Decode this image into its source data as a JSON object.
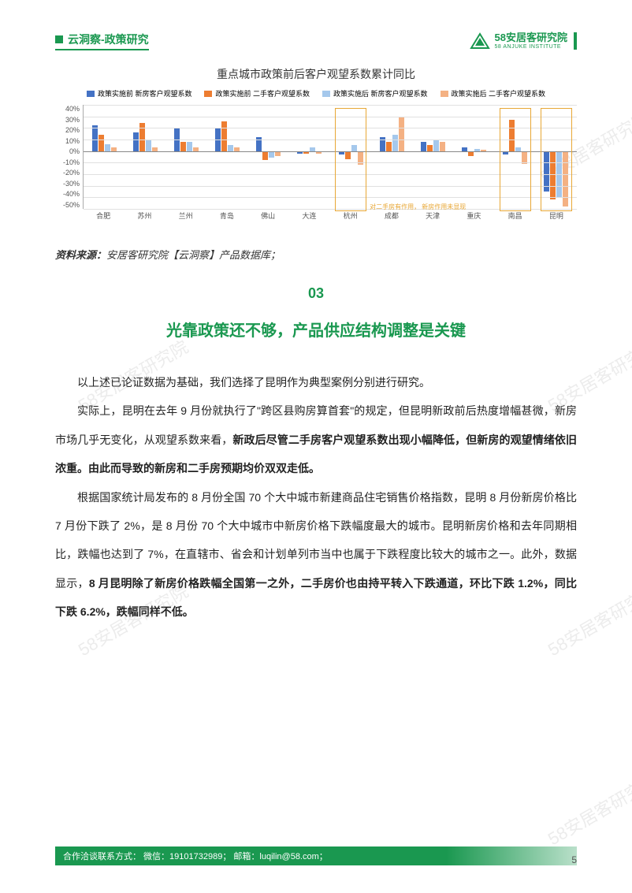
{
  "header": {
    "left": "云洞察-政策研究",
    "brand_main": "58安居客研究院",
    "brand_sub": "58 ANJUKE INSTITUTE"
  },
  "chart": {
    "title": "重点城市政策前后客户观望系数累计同比",
    "type": "bar",
    "legend": [
      {
        "label": "政策实施前 新房客户观望系数",
        "color": "#4472c4"
      },
      {
        "label": "政策实施前 二手客户观望系数",
        "color": "#ed7d31"
      },
      {
        "label": "政策实施后 新房客户观望系数",
        "color": "#a5c8ec"
      },
      {
        "label": "政策实施后 二手客户观望系数",
        "color": "#f4b183"
      }
    ],
    "categories": [
      "合肥",
      "苏州",
      "兰州",
      "青岛",
      "佛山",
      "大连",
      "杭州",
      "成都",
      "天津",
      "重庆",
      "南昌",
      "昆明"
    ],
    "series": [
      [
        22,
        16,
        20,
        20,
        12,
        -2,
        -3,
        12,
        8,
        3,
        -3,
        -35
      ],
      [
        14,
        24,
        8,
        26,
        -8,
        -2,
        -7,
        8,
        5,
        -4,
        27,
        -42
      ],
      [
        6,
        10,
        8,
        5,
        -6,
        3,
        5,
        14,
        10,
        2,
        3,
        -40
      ],
      [
        3,
        3,
        3,
        3,
        -4,
        -2,
        -12,
        30,
        8,
        1,
        -11,
        -48
      ]
    ],
    "ylim": [
      -50,
      40
    ],
    "ytick_step": 10,
    "y_format": "%",
    "bar_colors": [
      "#4472c4",
      "#ed7d31",
      "#a5c8ec",
      "#f4b183"
    ],
    "annotation_text": "对二手房有作用，\n新房作用未显现",
    "grid_color": "#e0e0e0",
    "background_color": "#ffffff"
  },
  "source": {
    "label": "资料来源：",
    "text": "安居客研究院【云洞察】产品数据库；"
  },
  "section": {
    "number": "03",
    "title": "光靠政策还不够，产品供应结构调整是关键"
  },
  "paragraphs": [
    {
      "plain": "以上述已论证数据为基础，我们选择了昆明作为典型案例分别进行研究。"
    },
    {
      "pre": "实际上，昆明在去年 9 月份就执行了\"跨区县购房算首套\"的规定，但昆明新政前后热度增幅甚微，新房市场几乎无变化，从观望系数来看，",
      "bold": "新政后尽管二手房客户观望系数出现小幅降低，但新房的观望情绪依旧浓重。由此而导致的新房和二手房预期均价双双走低。"
    },
    {
      "pre": "根据国家统计局发布的 8 月份全国 70 个大中城市新建商品住宅销售价格指数，昆明 8 月份新房价格比 7 月份下跌了 2%，是 8 月份 70 个大中城市中新房价格下跌幅度最大的城市。昆明新房价格和去年同期相比，跌幅也达到了 7%，在直辖市、省会和计划单列市当中也属于下跌程度比较大的城市之一。此外，数据显示，",
      "bold": "8 月昆明除了新房价格跌幅全国第一之外，二手房价也由持平转入下跌通道，环比下跌 1.2%，同比下跌 6.2%，跌幅同样不低。"
    }
  ],
  "footer": {
    "contact": "合作洽谈联系方式：  微信：19101732989；  邮箱：luqilin@58.com；",
    "page_number": "5"
  },
  "watermark_text": "58安居客研究院"
}
